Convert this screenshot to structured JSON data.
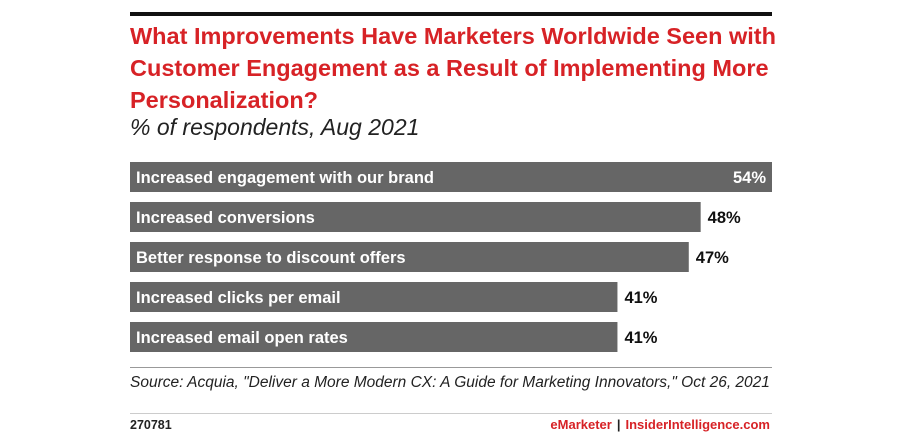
{
  "colors": {
    "accent": "#d72226",
    "bar": "#666666",
    "text": "#222222",
    "bar_text": "#ffffff"
  },
  "chart_data": {
    "type": "bar",
    "orientation": "horizontal",
    "title": "What Improvements Have Marketers Worldwide Seen with Customer Engagement as a Result of Implementing More Personalization?",
    "subtitle": "% of respondents, Aug 2021",
    "categories": [
      "Increased engagement with our brand",
      "Increased conversions",
      "Better response to discount offers",
      "Increased clicks per email",
      "Increased email open rates"
    ],
    "values": [
      54,
      48,
      47,
      41,
      41
    ],
    "value_labels": [
      "54%",
      "48%",
      "47%",
      "41%",
      "41%"
    ],
    "xlim": [
      0,
      54
    ],
    "grid": false,
    "legend": "none"
  },
  "source": "Source: Acquia, \"Deliver a More Modern CX: A Guide for Marketing Innovators,\" Oct 26, 2021",
  "footer": {
    "chart_id": "270781",
    "brand_left": "eMarketer",
    "separator": "|",
    "brand_right": "InsiderIntelligence.com"
  }
}
